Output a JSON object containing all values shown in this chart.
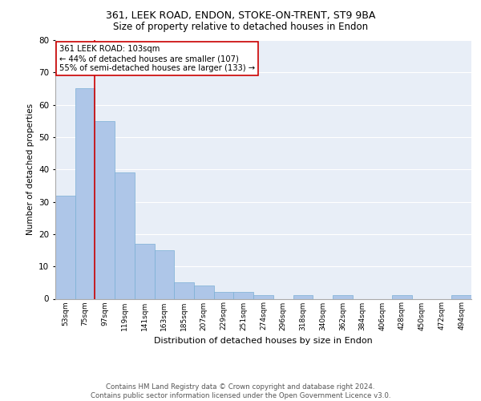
{
  "title1": "361, LEEK ROAD, ENDON, STOKE-ON-TRENT, ST9 9BA",
  "title2": "Size of property relative to detached houses in Endon",
  "xlabel": "Distribution of detached houses by size in Endon",
  "ylabel": "Number of detached properties",
  "bar_values": [
    32,
    65,
    55,
    39,
    17,
    15,
    5,
    4,
    2,
    2,
    1,
    0,
    1,
    0,
    1,
    0,
    0,
    1,
    0,
    0,
    1
  ],
  "bin_labels": [
    "53sqm",
    "75sqm",
    "97sqm",
    "119sqm",
    "141sqm",
    "163sqm",
    "185sqm",
    "207sqm",
    "229sqm",
    "251sqm",
    "274sqm",
    "296sqm",
    "318sqm",
    "340sqm",
    "362sqm",
    "384sqm",
    "406sqm",
    "428sqm",
    "450sqm",
    "472sqm",
    "494sqm"
  ],
  "bar_color": "#aec6e8",
  "bar_edge_color": "#7aafd4",
  "background_color": "#e8eef7",
  "grid_color": "#ffffff",
  "vline_x_index": 2,
  "vline_color": "#cc0000",
  "annotation_text": "361 LEEK ROAD: 103sqm\n← 44% of detached houses are smaller (107)\n55% of semi-detached houses are larger (133) →",
  "annotation_box_color": "#ffffff",
  "annotation_box_edgecolor": "#cc0000",
  "ylim": [
    0,
    80
  ],
  "yticks": [
    0,
    10,
    20,
    30,
    40,
    50,
    60,
    70,
    80
  ],
  "footer": "Contains HM Land Registry data © Crown copyright and database right 2024.\nContains public sector information licensed under the Open Government Licence v3.0."
}
